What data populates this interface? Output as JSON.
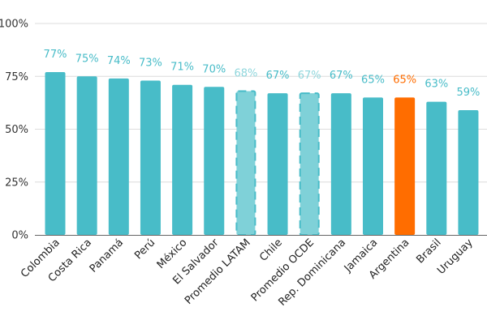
{
  "chart_data": {
    "type": "bar",
    "categories": [
      "Colombia",
      "Costa Rica",
      "Panamá",
      "Perú",
      "México",
      "El Salvador",
      "Promedio LATAM",
      "Chile",
      "Promedio OCDE",
      "Rep. Dominicana",
      "Jamaica",
      "Argentina",
      "Brasil",
      "Uruguay"
    ],
    "values": [
      77,
      75,
      74,
      73,
      71,
      70,
      68,
      67,
      67,
      67,
      65,
      65,
      63,
      59
    ],
    "value_labels": [
      "77%",
      "75%",
      "74%",
      "73%",
      "71%",
      "70%",
      "68%",
      "67%",
      "67%",
      "67%",
      "65%",
      "65%",
      "63%",
      "59%"
    ],
    "bar_styles": [
      "normal",
      "normal",
      "normal",
      "normal",
      "normal",
      "normal",
      "average",
      "normal",
      "average",
      "normal",
      "normal",
      "highlight",
      "normal",
      "normal"
    ],
    "yticks": [
      0,
      25,
      50,
      75,
      100
    ],
    "ytick_labels": [
      "0%",
      "25%",
      "50%",
      "75%",
      "100%"
    ],
    "ylim": [
      0,
      100
    ],
    "title": "",
    "xlabel": "",
    "ylabel": "",
    "grid": true,
    "colors": {
      "normal": "#48bcc8",
      "average": "#7fd1d8",
      "average_border": "#48bcc8",
      "highlight": "#ff6d00",
      "label_normal": "#48bcc8",
      "label_average": "#8fd6dc",
      "label_highlight": "#ff6d00"
    }
  }
}
